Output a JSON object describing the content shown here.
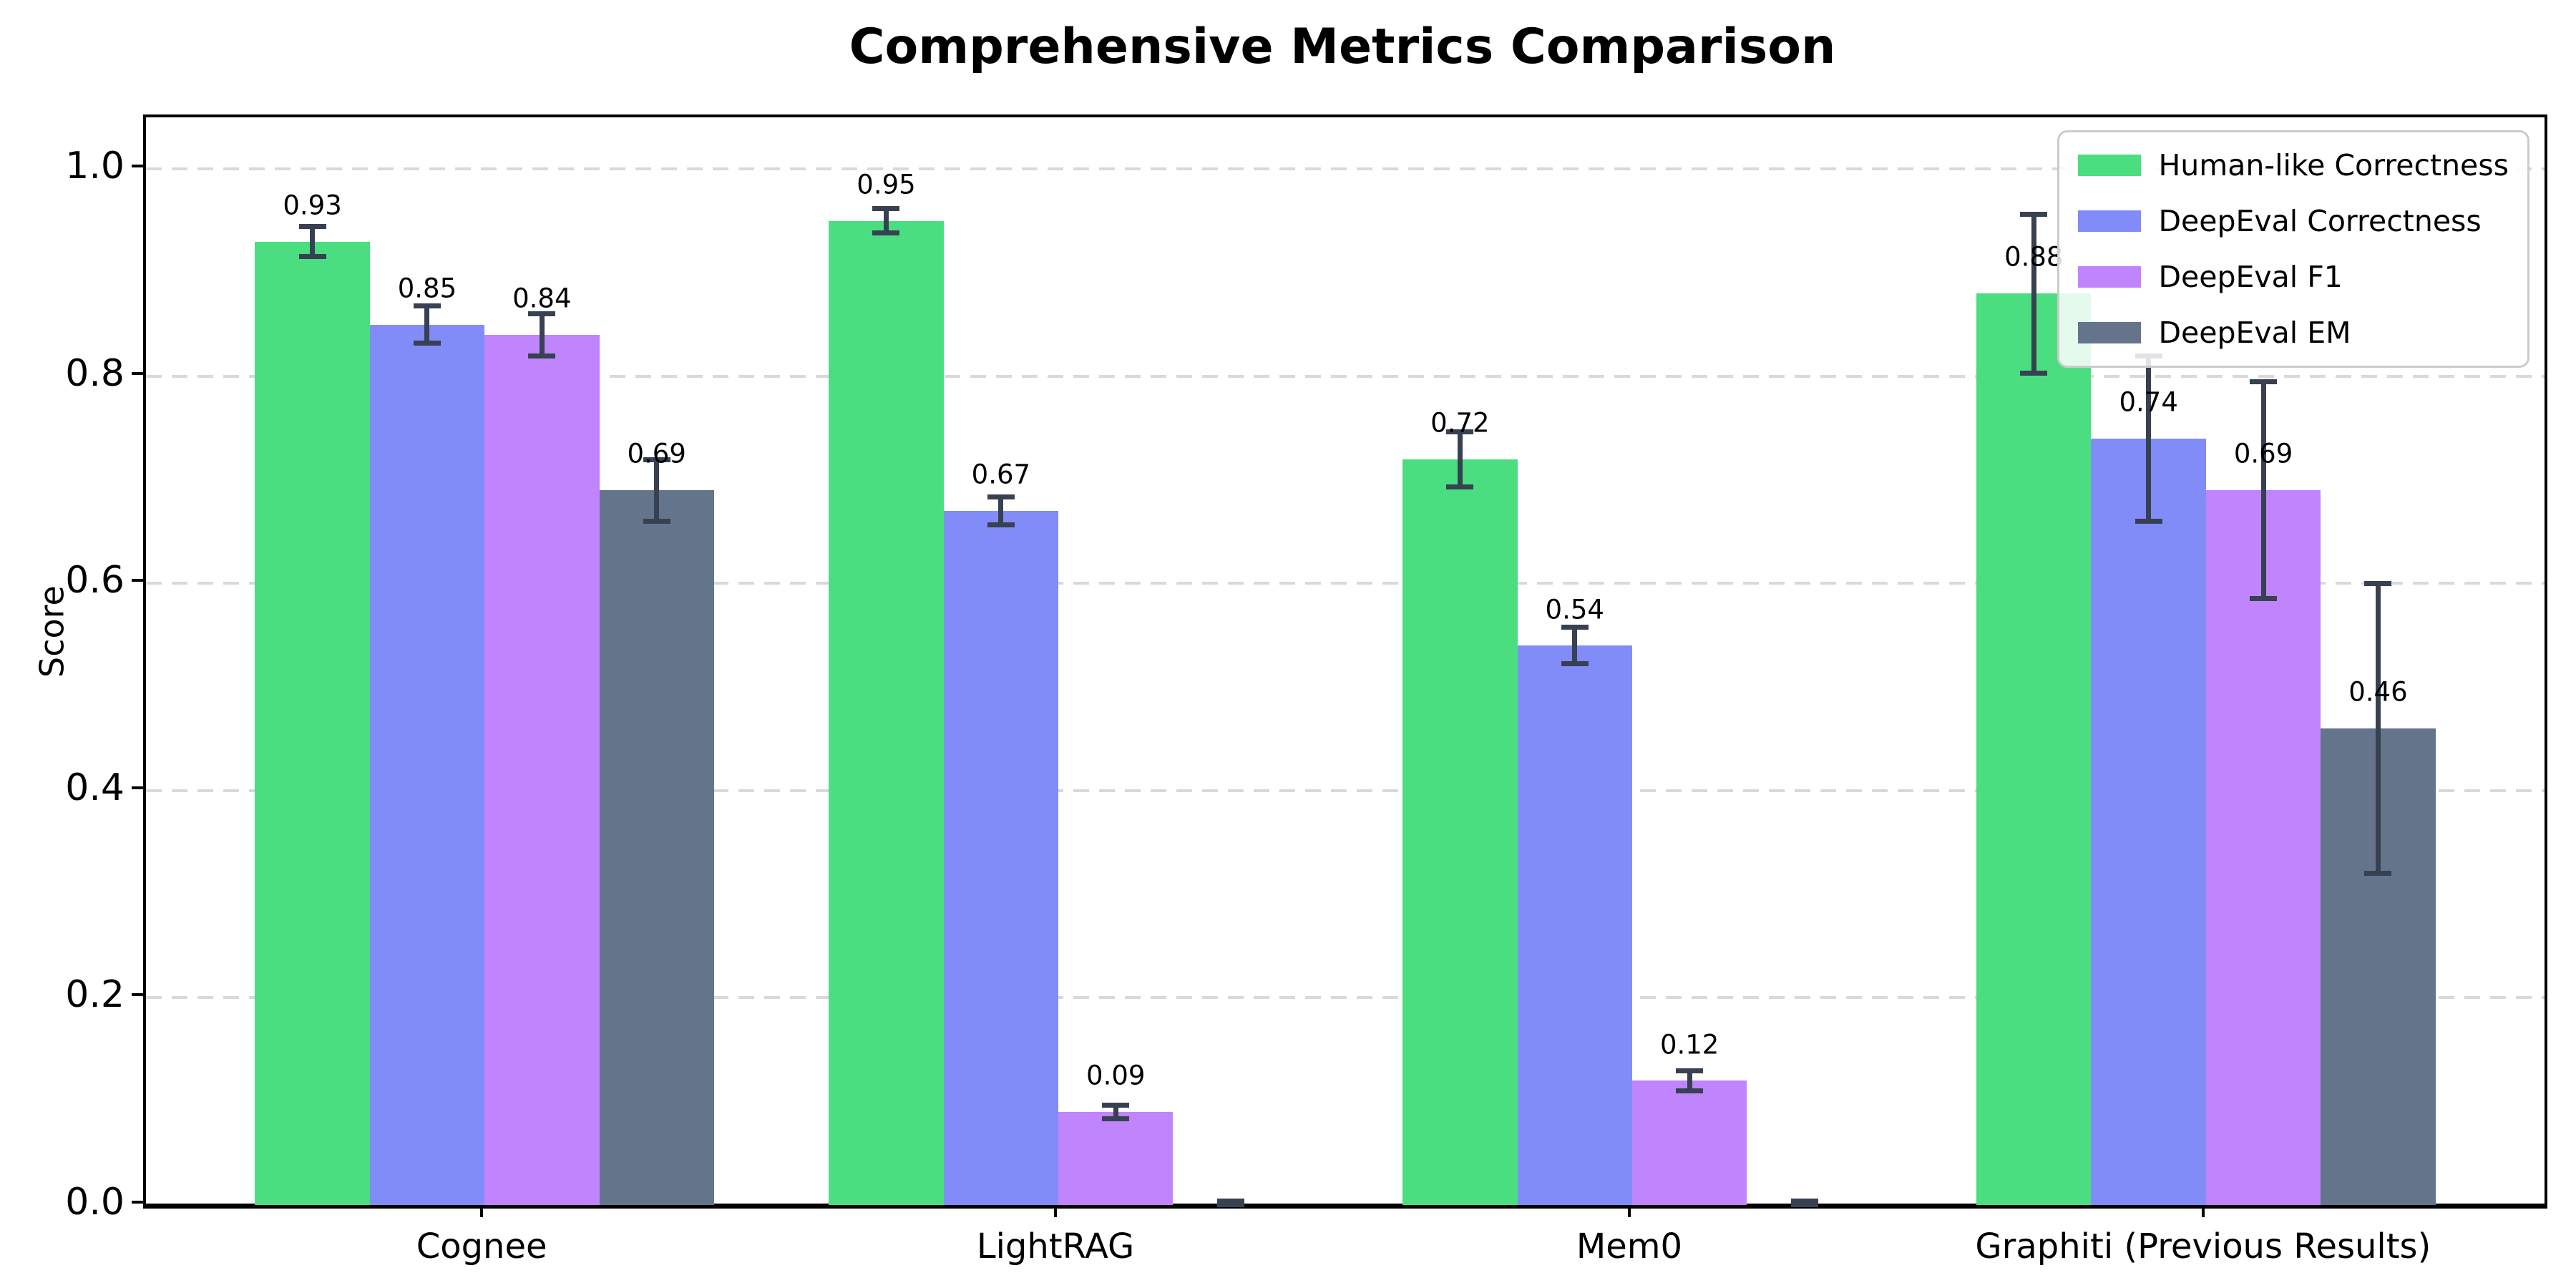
{
  "title": "Comprehensive Metrics Comparison",
  "chart_data": {
    "type": "bar",
    "title": "Comprehensive Metrics Comparison",
    "xlabel": "",
    "ylabel": "Score",
    "ylim": [
      0,
      1.05
    ],
    "yticks": [
      "0.0",
      "0.2",
      "0.4",
      "0.6",
      "0.8",
      "1.0"
    ],
    "grid": "horizontal-dashed",
    "grid_color": "#d9d9d9",
    "legend_position": "upper-right",
    "error_bar_color": "#374151",
    "categories": [
      "Cognee",
      "LightRAG",
      "Mem0",
      "Graphiti (Previous Results)"
    ],
    "series": [
      {
        "name": "Human-like Correctness",
        "color": "#4ade80",
        "values": [
          0.93,
          0.95,
          0.72,
          0.88
        ],
        "errors": [
          0.015,
          0.012,
          0.027,
          0.077
        ],
        "labels": [
          "0.93",
          "0.95",
          "0.72",
          "0.88"
        ]
      },
      {
        "name": "DeepEval Correctness",
        "color": "#818cf8",
        "values": [
          0.85,
          0.67,
          0.54,
          0.74
        ],
        "errors": [
          0.018,
          0.014,
          0.018,
          0.08
        ],
        "labels": [
          "0.85",
          "0.67",
          "0.54",
          "0.74"
        ]
      },
      {
        "name": "DeepEval F1",
        "color": "#c084fc",
        "values": [
          0.84,
          0.09,
          0.12,
          0.69
        ],
        "errors": [
          0.021,
          0.007,
          0.01,
          0.105
        ],
        "labels": [
          "0.84",
          "0.09",
          "0.12",
          "0.69"
        ]
      },
      {
        "name": "DeepEval EM",
        "color": "#64748b",
        "values": [
          0.69,
          0.0,
          0.0,
          0.46
        ],
        "errors": [
          0.03,
          0.004,
          0.004,
          0.14
        ],
        "labels": [
          "0.69",
          "",
          "",
          "0.46"
        ]
      }
    ]
  }
}
